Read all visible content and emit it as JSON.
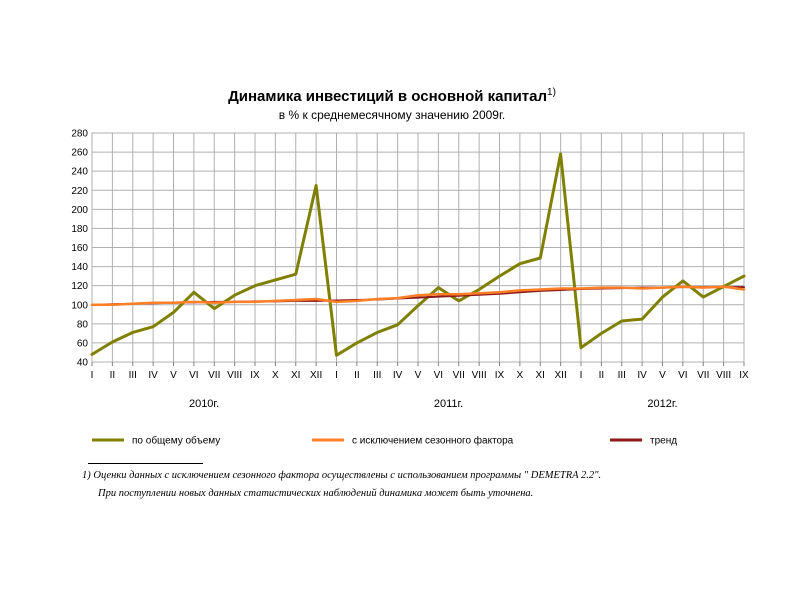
{
  "chart_data": {
    "type": "line",
    "title": "Динамика инвестиций в основной капитал",
    "title_sup": "1)",
    "subtitle": "в % к среднемесячному значению 2009г.",
    "ylim": [
      40,
      280
    ],
    "yticks": [
      40,
      60,
      80,
      100,
      120,
      140,
      160,
      180,
      200,
      220,
      240,
      260,
      280
    ],
    "grid": true,
    "legend_position": "bottom",
    "categories": [
      "I",
      "II",
      "III",
      "IV",
      "V",
      "VI",
      "VII",
      "VIII",
      "IX",
      "X",
      "XI",
      "XII",
      "I",
      "II",
      "III",
      "IV",
      "V",
      "VI",
      "VII",
      "VIII",
      "IX",
      "X",
      "XI",
      "XII",
      "I",
      "II",
      "III",
      "IV",
      "V",
      "VI",
      "VII",
      "VIII",
      "IX"
    ],
    "years": [
      {
        "label": "2010г.",
        "start": 0,
        "end": 11
      },
      {
        "label": "2011г.",
        "start": 12,
        "end": 23
      },
      {
        "label": "2012г.",
        "start": 24,
        "end": 32
      }
    ],
    "series": [
      {
        "name": "по общему объему",
        "color": "#808000",
        "width": 3,
        "values": [
          48,
          61,
          71,
          77,
          92,
          113,
          96,
          110,
          120,
          126,
          132,
          225,
          47,
          60,
          71,
          79,
          99,
          118,
          104,
          116,
          130,
          143,
          149,
          258,
          55,
          70,
          83,
          85,
          108,
          125,
          108,
          119,
          130
        ]
      },
      {
        "name": "с исключением сезонного фактора",
        "color": "#FF7F27",
        "width": 2.5,
        "values": [
          100,
          100,
          101,
          102,
          102,
          103,
          102,
          103,
          103,
          104,
          105,
          106,
          103,
          104,
          106,
          107,
          110,
          111,
          111,
          112,
          113,
          115,
          116,
          117,
          117,
          118,
          118,
          117,
          118,
          119,
          118,
          119,
          116
        ]
      },
      {
        "name": "тренд",
        "color": "#8B1A1A",
        "width": 2,
        "values": [
          100,
          100.5,
          101,
          101.5,
          102,
          102.5,
          103,
          103,
          103.5,
          103.5,
          104,
          104,
          104.5,
          105,
          105.5,
          106.5,
          107.5,
          108.5,
          109.5,
          110.5,
          111.5,
          113,
          114.5,
          115.5,
          116.5,
          117,
          117.5,
          118,
          118,
          118.5,
          118.5,
          118.5,
          118.5
        ]
      }
    ]
  },
  "footnote": {
    "line1": "1) Оценки данных с исключением сезонного фактора осуществлены с использованием программы \" DEMETRA 2.2\".",
    "line2": "При поступлении новых данных статистических наблюдений динамика может быть уточнена."
  }
}
